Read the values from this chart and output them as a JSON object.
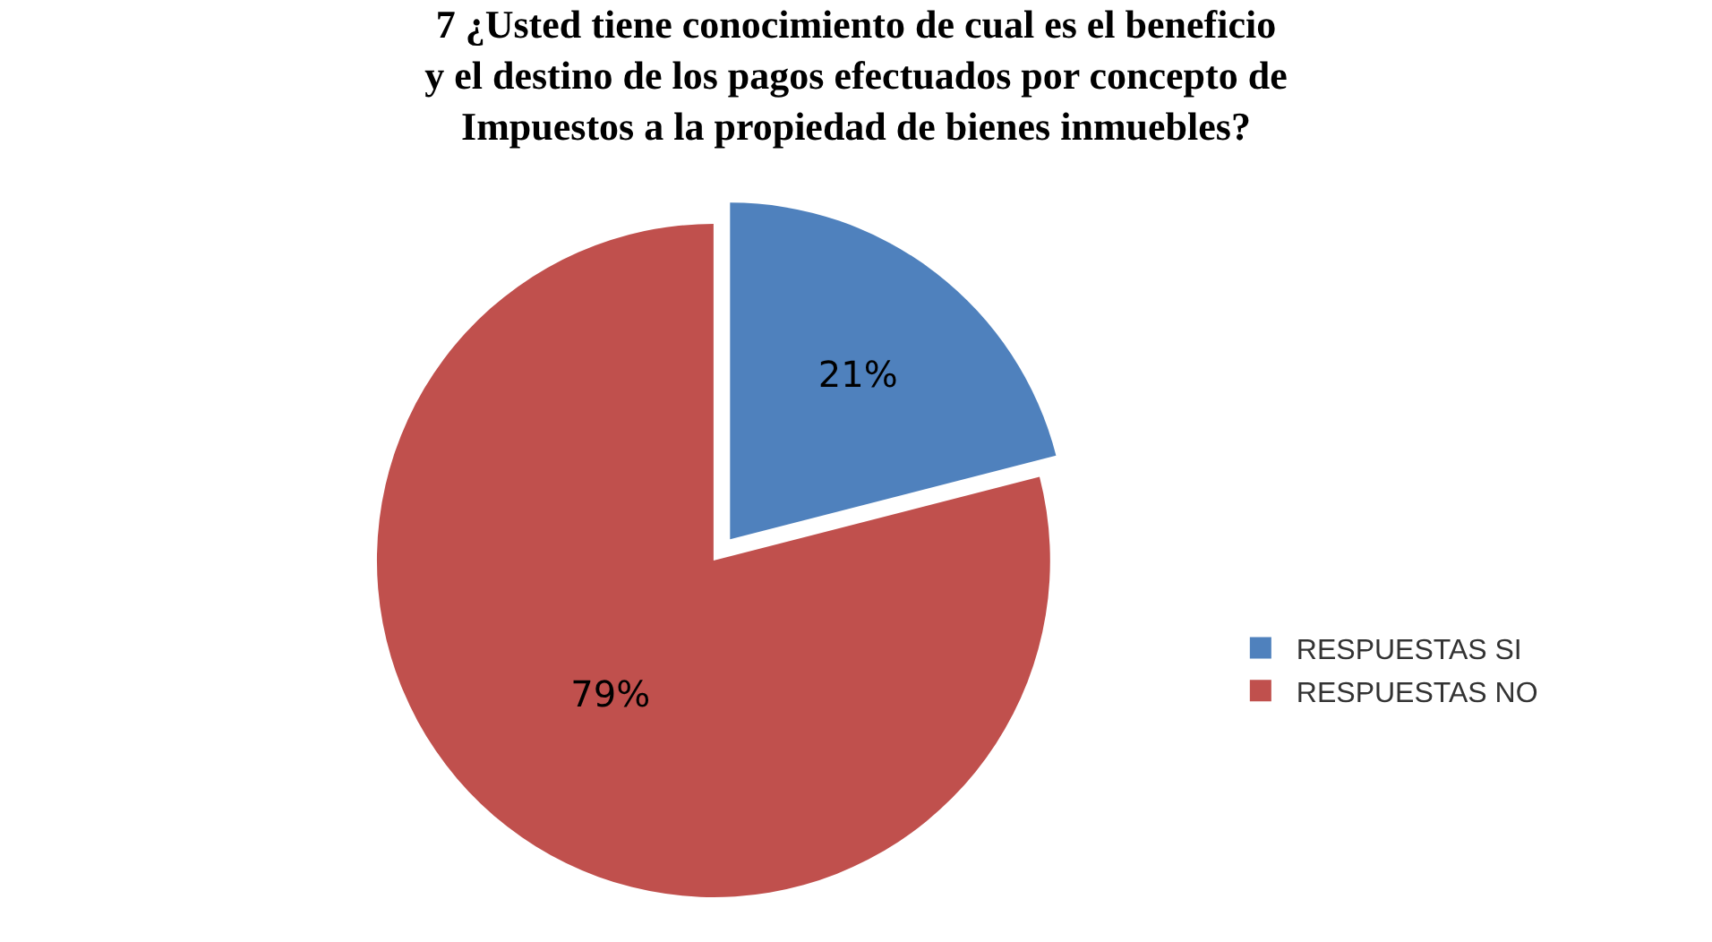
{
  "chart_data": {
    "type": "pie",
    "title": "7 ¿Usted tiene conocimiento de cual es el beneficio y el destino de los pagos efectuados por concepto de Impuestos a la propiedad de bienes inmuebles?",
    "categories": [
      "RESPUESTAS SI",
      "RESPUESTAS NO"
    ],
    "values": [
      21,
      79
    ],
    "colors": [
      "#4f81bd",
      "#c0504d"
    ],
    "value_labels": [
      "21%",
      "79%"
    ],
    "legend": "right"
  }
}
